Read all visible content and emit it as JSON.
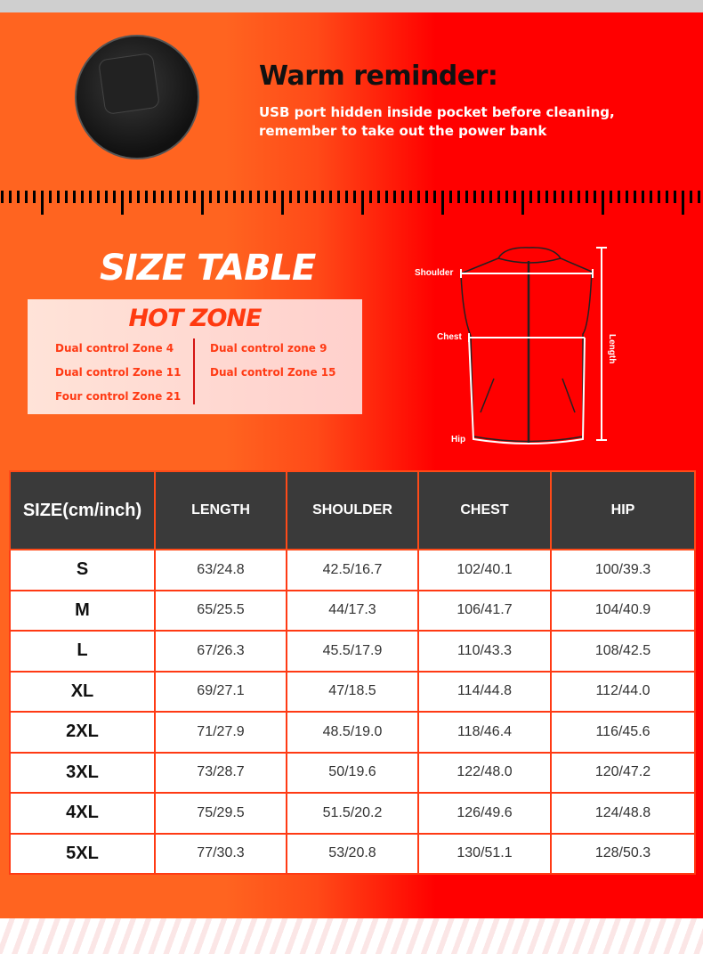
{
  "reminder": {
    "title": "Warm reminder:",
    "line1": "USB port hidden inside pocket before cleaning,",
    "line2": "remember to take out the power bank"
  },
  "size_table_title": "SIZE TABLE",
  "hot_zone": {
    "title": "HOT ZONE",
    "left": [
      "Dual control Zone 4",
      "Dual control Zone 11",
      "Four control Zone 21"
    ],
    "right": [
      "Dual control zone 9",
      "Dual control Zone 15"
    ]
  },
  "diagram": {
    "shoulder": "Shoulder",
    "chest": "Chest",
    "hip": "Hip",
    "length": "Length"
  },
  "colors": {
    "orange": "#ff6420",
    "red": "#ff0000",
    "header": "#3a3a3a"
  },
  "table": {
    "headers": [
      "SIZE(cm/inch)",
      "LENGTH",
      "SHOULDER",
      "CHEST",
      "HIP"
    ],
    "rows": [
      [
        "S",
        "63/24.8",
        "42.5/16.7",
        "102/40.1",
        "100/39.3"
      ],
      [
        "M",
        "65/25.5",
        "44/17.3",
        "106/41.7",
        "104/40.9"
      ],
      [
        "L",
        "67/26.3",
        "45.5/17.9",
        "110/43.3",
        "108/42.5"
      ],
      [
        "XL",
        "69/27.1",
        "47/18.5",
        "114/44.8",
        "112/44.0"
      ],
      [
        "2XL",
        "71/27.9",
        "48.5/19.0",
        "118/46.4",
        "116/45.6"
      ],
      [
        "3XL",
        "73/28.7",
        "50/19.6",
        "122/48.0",
        "120/47.2"
      ],
      [
        "4XL",
        "75/29.5",
        "51.5/20.2",
        "126/49.6",
        "124/48.8"
      ],
      [
        "5XL",
        "77/30.3",
        "53/20.8",
        "130/51.1",
        "128/50.3"
      ]
    ]
  }
}
